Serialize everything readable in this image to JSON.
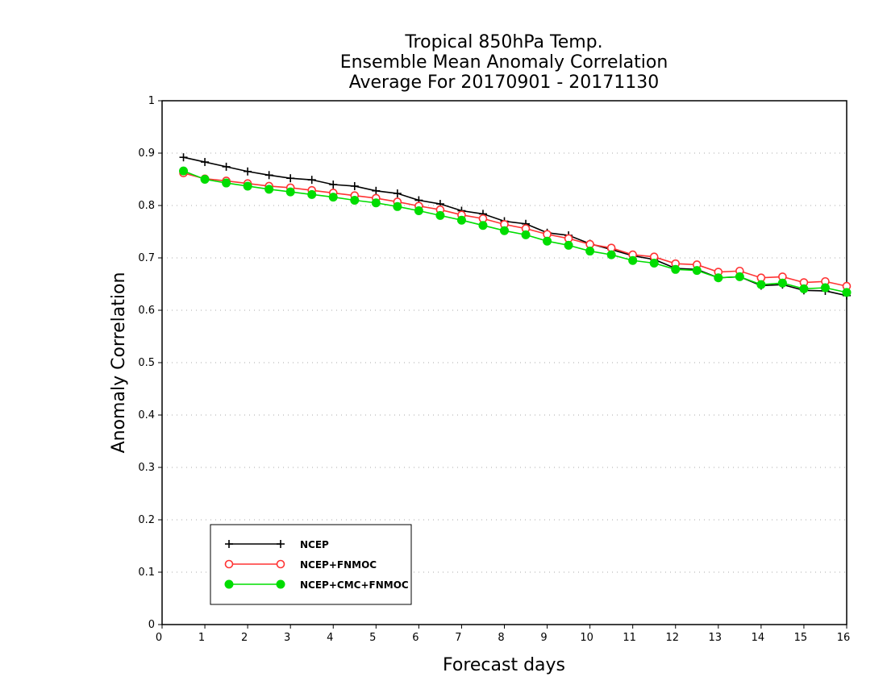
{
  "chart_data": {
    "type": "line",
    "title_lines": [
      "Tropical 850hPa Temp.",
      "Ensemble Mean Anomaly Correlation",
      "Average For 20170901 - 20171130"
    ],
    "xlabel": "Forecast days",
    "ylabel": "Anomaly Correlation",
    "xlim": [
      0,
      16
    ],
    "ylim": [
      0,
      1
    ],
    "x_ticks": [
      "0",
      "1",
      "2",
      "3",
      "4",
      "5",
      "6",
      "7",
      "8",
      "9",
      "10",
      "11",
      "12",
      "13",
      "14",
      "15",
      "16"
    ],
    "y_ticks": [
      "0",
      "0.1",
      "0.2",
      "0.3",
      "0.4",
      "0.5",
      "0.6",
      "0.7",
      "0.8",
      "0.9",
      "1"
    ],
    "grid": "horizontal dotted",
    "legend_position": "bottom-left",
    "x": [
      0.5,
      1,
      1.5,
      2,
      2.5,
      3,
      3.5,
      4,
      4.5,
      5,
      5.5,
      6,
      6.5,
      7,
      7.5,
      8,
      8.5,
      9,
      9.5,
      10,
      10.5,
      11,
      11.5,
      12,
      12.5,
      13,
      13.5,
      14,
      14.5,
      15,
      15.5,
      16
    ],
    "series": [
      {
        "name": "NCEP",
        "color": "#000000",
        "marker": "plus",
        "values": [
          0.892,
          0.883,
          0.874,
          0.865,
          0.858,
          0.852,
          0.849,
          0.84,
          0.837,
          0.828,
          0.823,
          0.81,
          0.803,
          0.79,
          0.784,
          0.77,
          0.765,
          0.748,
          0.743,
          0.727,
          0.716,
          0.704,
          0.697,
          0.68,
          0.678,
          0.662,
          0.664,
          0.647,
          0.649,
          0.638,
          0.637,
          0.628
        ]
      },
      {
        "name": "NCEP+FNMOC",
        "color": "#ff3333",
        "marker": "open-circle",
        "values": [
          0.862,
          0.851,
          0.847,
          0.842,
          0.837,
          0.834,
          0.829,
          0.824,
          0.819,
          0.814,
          0.807,
          0.799,
          0.792,
          0.782,
          0.775,
          0.764,
          0.756,
          0.745,
          0.737,
          0.726,
          0.719,
          0.706,
          0.702,
          0.689,
          0.687,
          0.673,
          0.675,
          0.662,
          0.664,
          0.653,
          0.655,
          0.646
        ]
      },
      {
        "name": "NCEP+CMC+FNMOC",
        "color": "#00dd00",
        "marker": "filled-circle",
        "values": [
          0.866,
          0.85,
          0.843,
          0.837,
          0.831,
          0.826,
          0.821,
          0.816,
          0.81,
          0.805,
          0.798,
          0.79,
          0.781,
          0.772,
          0.762,
          0.752,
          0.744,
          0.732,
          0.724,
          0.713,
          0.706,
          0.695,
          0.69,
          0.678,
          0.676,
          0.662,
          0.664,
          0.649,
          0.652,
          0.641,
          0.643,
          0.634
        ]
      }
    ]
  }
}
